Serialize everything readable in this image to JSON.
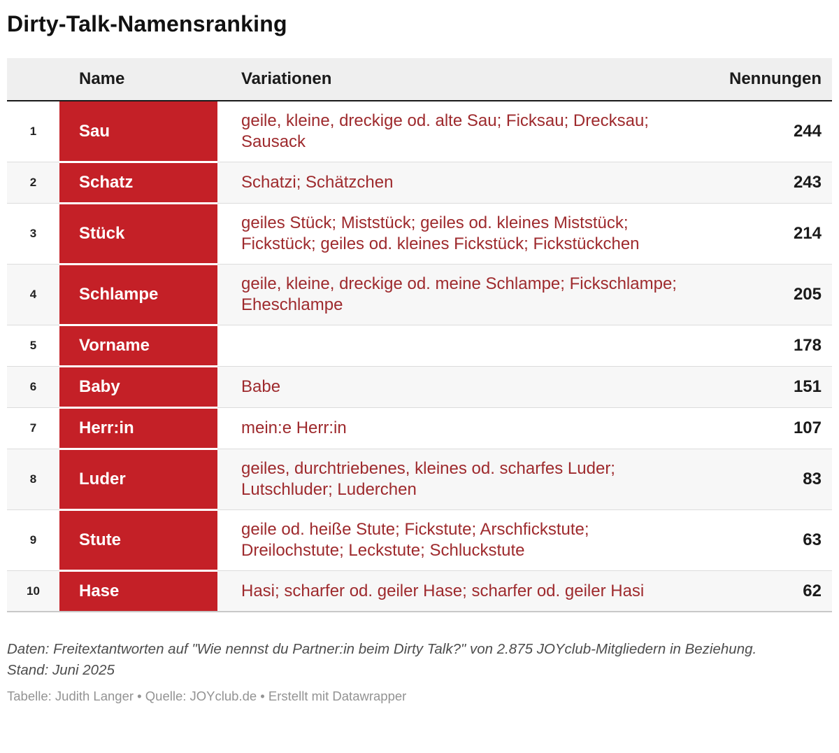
{
  "title": "Dirty-Talk-Namensranking",
  "table": {
    "columns": {
      "name": "Name",
      "variations": "Variationen",
      "count": "Nennungen"
    },
    "rows": [
      {
        "rank": "1",
        "name": "Sau",
        "variations": "geile, kleine, dreckige od. alte Sau; Ficksau; Drecksau; Sausack",
        "count": "244"
      },
      {
        "rank": "2",
        "name": "Schatz",
        "variations": "Schatzi; Schätzchen",
        "count": "243"
      },
      {
        "rank": "3",
        "name": "Stück",
        "variations": "geiles Stück; Miststück; geiles od. kleines Miststück; Fickstück; geiles od. kleines Fickstück; Fickstückchen",
        "count": "214"
      },
      {
        "rank": "4",
        "name": "Schlampe",
        "variations": "geile, kleine, dreckige od. meine Schlampe; Fickschlampe; Eheschlampe",
        "count": "205"
      },
      {
        "rank": "5",
        "name": "Vorname",
        "variations": "",
        "count": "178"
      },
      {
        "rank": "6",
        "name": "Baby",
        "variations": "Babe",
        "count": "151"
      },
      {
        "rank": "7",
        "name": "Herr:in",
        "variations": "mein:e Herr:in",
        "count": "107"
      },
      {
        "rank": "8",
        "name": "Luder",
        "variations": "geiles, durchtriebenes, kleines od. scharfes Luder; Lutschluder; Luderchen",
        "count": "83"
      },
      {
        "rank": "9",
        "name": "Stute",
        "variations": "geile od. heiße Stute; Fickstute; Arschfickstute; Dreilochstute; Leckstute; Schluckstute",
        "count": "63"
      },
      {
        "rank": "10",
        "name": "Hase",
        "variations": "Hasi; scharfer od. geiler Hase; scharfer od. geiler Hasi",
        "count": "62"
      }
    ]
  },
  "footer": {
    "notes": "Daten: Freitextantworten auf \"Wie nennst du Partner:in beim Dirty Talk?\" von 2.875 JOYclub-Mitgliedern in Beziehung. Stand: Juni 2025",
    "byline": "Tabelle: Judith Langer • Quelle: JOYclub.de • Erstellt mit Datawrapper"
  },
  "colors": {
    "accent_red": "#c42027",
    "variation_text_red": "#9e2a2d",
    "header_background": "#efefef",
    "stripe_background": "#f7f7f7"
  }
}
